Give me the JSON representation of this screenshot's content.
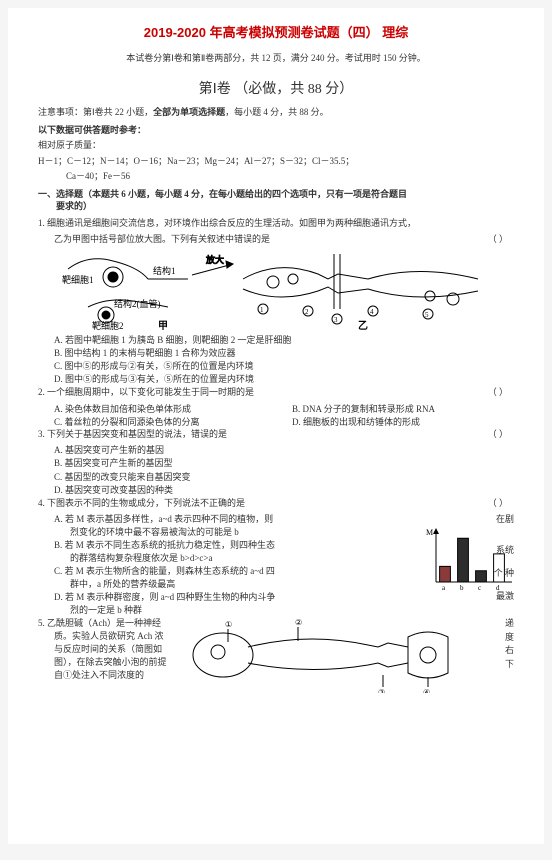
{
  "header": {
    "title": "2019-2020 年高考模拟预测卷试题（四）  理综",
    "subtitle": "本试卷分第Ⅰ卷和第Ⅱ卷两部分，共 12 页，满分 240 分。考试用时 150 分钟。"
  },
  "section": {
    "title": "第Ⅰ卷  （必做，共 88 分）",
    "note": "注意事项：第Ⅰ卷共 22 小题，全部为单项选择题，每小题 4 分，共 88 分。",
    "datahead": "以下数据可供答题时参考：",
    "massline": "相对原子质量：",
    "mass1": "H－1；C－12；N－14；O－16；Na－23；Mg－24；Al－27；S－32；Cl－35.5；",
    "mass2": "Ca－40；Fe－56"
  },
  "part1head": "一、选择题（本题共 6 小题，每小题 4 分，在每小题给出的四个选项中，只有一项是符合题目",
  "part1head2": "要求的）",
  "q1": {
    "stem": "1.  细胞通讯是细胞间交流信息，对环境作出综合反应的生理活动。如图甲为两种细胞通讯方式，",
    "stem2": "乙为甲图中括号部位放大图。下列有关叙述中错误的是",
    "paren": "（        ）",
    "diagram": {
      "labels": {
        "fangda": "放大",
        "target1": "靶细胞1",
        "jiegou1": "结构1",
        "jiegou2": "结构2（血管）",
        "target2": "靶细胞2",
        "jia": "甲",
        "yi": "乙"
      }
    },
    "A": "A.  若图中靶细胞 1 为胰岛 B 细胞，则靶细胞 2 一定是肝细胞",
    "B": "B.  图中结构 1 的末梢与靶细胞 1 合称为效应器",
    "C": "C.  图中⑤的形成与②有关，⑤所在的位置是内环境",
    "D": "D.  图中⑤的形成与③有关，⑤所在的位置是内环境"
  },
  "q2": {
    "stem": "2.  一个细胞周期中，以下变化可能发生于同一时期的是",
    "paren": "（        ）",
    "A": "A.  染色体数目加倍和染色单体形成",
    "B": "B.  DNA 分子的复制和转录形成 RNA",
    "C": "C.  着丝粒的分裂和同源染色体的分离",
    "D": "D.  细胞板的出现和纺锤体的形成"
  },
  "q3": {
    "stem": "3.  下列关于基因突变和基因型的说法，错误的是",
    "paren": "（        ）",
    "A": "A.  基因突变可产生新的基因",
    "B": "B.  基因突变可产生新的基因型",
    "C": "C.  基因型的改变只能来自基因突变",
    "D": "D.  基因突变可改变基因的种类"
  },
  "q4": {
    "stem": "4.  下图表示不同的生物或成分，下列说法不正确的是",
    "paren": "（        ）",
    "A": "A.  若 M 表示基因多样性，a~d 表示四种不同的植物，则",
    "A2": "烈变化的环境中最不容易被淘汰的可能是 b",
    "B": "B.  若 M 表示不同生态系统的抵抗力稳定性，则四种生态",
    "B2": "的群落结构复杂程度依次是 b>d>c>a",
    "C": "C.  若 M 表示生物所含的能量，则森林生态系统的 a~d 四",
    "C2": "群中，a 所处的营养级最高",
    "D": "D.  若 M 表示种群密度，则 a~d 四种野生生物的种内斗争",
    "D2": "烈的一定是 b 种群",
    "side": {
      "r1": "在剧",
      "r2": "系统",
      "r3": "个 种",
      "r4": "最激"
    },
    "chart": {
      "type": "bar",
      "categories": [
        "a",
        "b",
        "c",
        "d"
      ],
      "values": [
        25,
        70,
        18,
        45
      ],
      "bar_colors": [
        "#8b3a3a",
        "#2d2d2d",
        "#2d2d2d",
        "#ffffff"
      ],
      "bar_borders": [
        "#000",
        "#000",
        "#000",
        "#000"
      ],
      "ylabel": "M",
      "background_color": "#ffffff",
      "axis_color": "#000000",
      "ylim": [
        0,
        80
      ]
    }
  },
  "q5": {
    "stem1": "5.  乙酰胆碱（Ach）是一种神经",
    "stem2": "质。实验人员欲研究 Ach 浓",
    "stem3": "与反应时间的关系（简图如",
    "stem4": "图），在除去突触小泡的前提",
    "stem5": "自①处注入不同浓度的",
    "side": {
      "r1": "递",
      "r2": "度",
      "r3": "右",
      "r4": "下",
      "r5": ""
    }
  }
}
